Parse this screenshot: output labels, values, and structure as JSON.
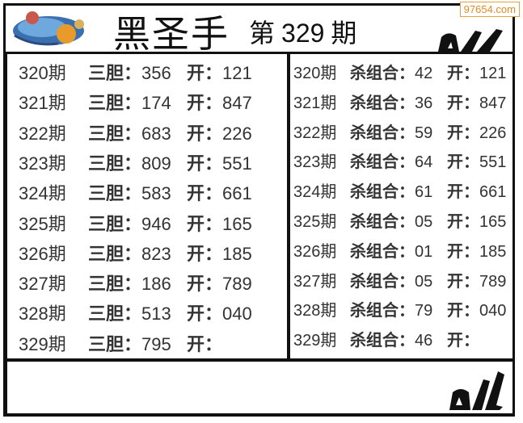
{
  "header": {
    "title": "黑圣手",
    "issue_prefix": "第",
    "issue_number": "329",
    "issue_suffix": "期",
    "watermark": "97654.com"
  },
  "left": {
    "label": "三胆：",
    "open_label": "开：",
    "rows": [
      {
        "period": "320期",
        "value": "356",
        "open": "121"
      },
      {
        "period": "321期",
        "value": "174",
        "open": "847"
      },
      {
        "period": "322期",
        "value": "683",
        "open": "226"
      },
      {
        "period": "323期",
        "value": "809",
        "open": "551"
      },
      {
        "period": "324期",
        "value": "583",
        "open": "661"
      },
      {
        "period": "325期",
        "value": "946",
        "open": "165"
      },
      {
        "period": "326期",
        "value": "823",
        "open": "185"
      },
      {
        "period": "327期",
        "value": "186",
        "open": "789"
      },
      {
        "period": "328期",
        "value": "513",
        "open": "040"
      },
      {
        "period": "329期",
        "value": "795",
        "open": ""
      }
    ]
  },
  "right": {
    "label": "杀组合：",
    "open_label": "开：",
    "rows": [
      {
        "period": "320期",
        "value": "42",
        "open": "121"
      },
      {
        "period": "321期",
        "value": "36",
        "open": "847"
      },
      {
        "period": "322期",
        "value": "59",
        "open": "226"
      },
      {
        "period": "323期",
        "value": "64",
        "open": "551"
      },
      {
        "period": "324期",
        "value": "61",
        "open": "661"
      },
      {
        "period": "325期",
        "value": "05",
        "open": "165"
      },
      {
        "period": "326期",
        "value": "01",
        "open": "185"
      },
      {
        "period": "327期",
        "value": "05",
        "open": "789"
      },
      {
        "period": "328期",
        "value": "79",
        "open": "040"
      },
      {
        "period": "329期",
        "value": "46",
        "open": ""
      }
    ]
  },
  "icons": {
    "logo": "globe-logo-icon",
    "ok_hand": "ok-hand-icon"
  }
}
